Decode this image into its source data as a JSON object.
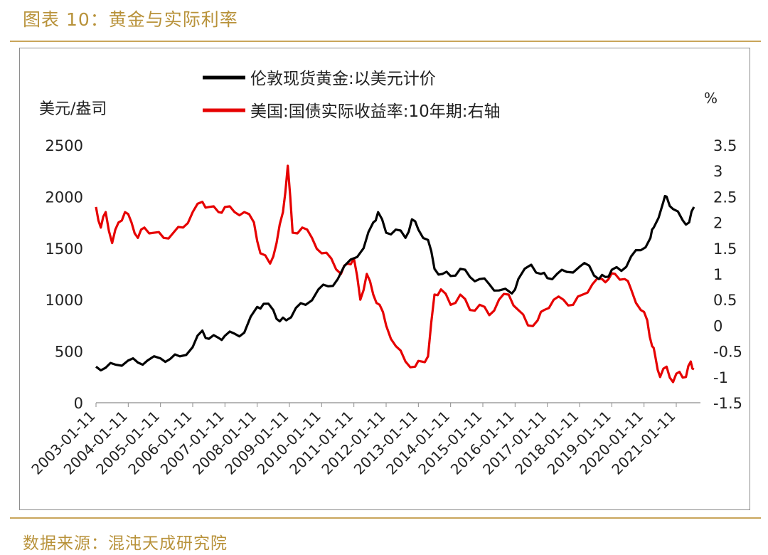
{
  "header": {
    "title": "图表 10：黄金与实际利率"
  },
  "footer": {
    "source": "数据来源：混沌天成研究院"
  },
  "colors": {
    "gold": "#000000",
    "real_rate": "#e60000",
    "accent": "#b8923a"
  },
  "chart_data": {
    "type": "line",
    "xlabel": "",
    "y_left_label": "美元/盎司",
    "y_right_label": "%",
    "y_left_lim": [
      0,
      2500
    ],
    "y_left_ticks": [
      "0",
      "500",
      "1000",
      "1500",
      "2000",
      "2500"
    ],
    "y_right_lim": [
      -1.5,
      3.5
    ],
    "y_right_ticks": [
      "-1.5",
      "-1",
      "-0.5",
      "0",
      "0.5",
      "1",
      "1.5",
      "2",
      "2.5",
      "3",
      "3.5"
    ],
    "x_lim": [
      2003.0,
      2021.75
    ],
    "x_ticks": [
      "2003-01-11",
      "2004-01-11",
      "2005-01-11",
      "2006-01-11",
      "2007-01-11",
      "2008-01-11",
      "2009-01-11",
      "2010-01-11",
      "2011-01-11",
      "2012-01-11",
      "2013-01-11",
      "2014-01-11",
      "2015-01-11",
      "2016-01-11",
      "2017-01-11",
      "2018-01-11",
      "2019-01-11",
      "2020-01-11",
      "2021-01-11"
    ],
    "legend_position": "top",
    "grid": false,
    "series": [
      {
        "name": "伦敦现货黄金:以美元计价",
        "axis": "left",
        "x": [
          2003.0,
          2003.3,
          2003.6,
          2004.0,
          2004.3,
          2004.6,
          2005.0,
          2005.3,
          2005.6,
          2006.0,
          2006.3,
          2006.5,
          2006.8,
          2007.0,
          2007.3,
          2007.6,
          2008.0,
          2008.2,
          2008.5,
          2008.7,
          2008.9,
          2009.2,
          2009.5,
          2009.9,
          2010.2,
          2010.5,
          2010.9,
          2011.3,
          2011.6,
          2011.75,
          2012.0,
          2012.3,
          2012.6,
          2012.8,
          2013.0,
          2013.3,
          2013.5,
          2013.75,
          2014.0,
          2014.3,
          2014.6,
          2014.9,
          2015.2,
          2015.5,
          2015.9,
          2016.1,
          2016.5,
          2016.8,
          2017.0,
          2017.3,
          2017.6,
          2018.0,
          2018.3,
          2018.6,
          2018.8,
          2019.0,
          2019.3,
          2019.6,
          2019.9,
          2020.2,
          2020.3,
          2020.6,
          2020.7,
          2020.9,
          2021.2,
          2021.4,
          2021.55
        ],
        "values": [
          350,
          340,
          370,
          410,
          390,
          410,
          430,
          425,
          450,
          540,
          700,
          620,
          630,
          650,
          670,
          680,
          930,
          960,
          900,
          790,
          800,
          920,
          950,
          1100,
          1130,
          1200,
          1390,
          1500,
          1750,
          1850,
          1650,
          1680,
          1600,
          1780,
          1680,
          1580,
          1300,
          1250,
          1230,
          1300,
          1220,
          1200,
          1150,
          1090,
          1060,
          1200,
          1340,
          1250,
          1210,
          1250,
          1270,
          1320,
          1330,
          1200,
          1220,
          1290,
          1280,
          1420,
          1480,
          1600,
          1700,
          1950,
          2000,
          1880,
          1770,
          1750,
          1900
        ]
      },
      {
        "name": "美国:国债实际收益率:10年期:右轴",
        "axis": "right",
        "x": [
          2003.0,
          2003.15,
          2003.3,
          2003.5,
          2003.7,
          2003.9,
          2004.1,
          2004.3,
          2004.5,
          2004.8,
          2005.1,
          2005.4,
          2005.7,
          2006.0,
          2006.3,
          2006.5,
          2006.8,
          2007.0,
          2007.3,
          2007.6,
          2007.9,
          2008.1,
          2008.4,
          2008.6,
          2008.8,
          2008.95,
          2009.1,
          2009.4,
          2009.7,
          2010.0,
          2010.3,
          2010.6,
          2010.8,
          2011.0,
          2011.2,
          2011.4,
          2011.6,
          2011.8,
          2012.0,
          2012.3,
          2012.6,
          2012.9,
          2013.1,
          2013.3,
          2013.5,
          2013.7,
          2014.0,
          2014.3,
          2014.6,
          2014.9,
          2015.2,
          2015.5,
          2015.8,
          2016.1,
          2016.4,
          2016.7,
          2016.9,
          2017.2,
          2017.5,
          2017.8,
          2018.1,
          2018.4,
          2018.7,
          2018.9,
          2019.1,
          2019.4,
          2019.6,
          2019.9,
          2020.1,
          2020.25,
          2020.35,
          2020.5,
          2020.7,
          2020.9,
          2021.1,
          2021.3,
          2021.45,
          2021.55
        ],
        "values": [
          2.3,
          1.9,
          2.2,
          1.6,
          2.0,
          2.2,
          2.0,
          1.7,
          1.9,
          1.8,
          1.7,
          1.8,
          1.9,
          2.2,
          2.4,
          2.3,
          2.2,
          2.3,
          2.2,
          2.2,
          2.0,
          1.4,
          1.2,
          1.6,
          2.2,
          3.1,
          1.8,
          1.9,
          1.7,
          1.4,
          1.3,
          1.0,
          1.2,
          1.3,
          0.5,
          1.0,
          0.6,
          0.4,
          0.0,
          -0.4,
          -0.7,
          -0.8,
          -0.7,
          -0.6,
          0.6,
          0.7,
          0.4,
          0.6,
          0.3,
          0.4,
          0.2,
          0.5,
          0.6,
          0.3,
          0.0,
          0.1,
          0.3,
          0.5,
          0.5,
          0.4,
          0.6,
          0.8,
          0.9,
          0.9,
          1.0,
          0.9,
          0.7,
          0.3,
          0.1,
          -0.4,
          -0.6,
          -1.0,
          -0.8,
          -1.1,
          -0.9,
          -1.0,
          -0.7,
          -0.85
        ]
      }
    ]
  }
}
